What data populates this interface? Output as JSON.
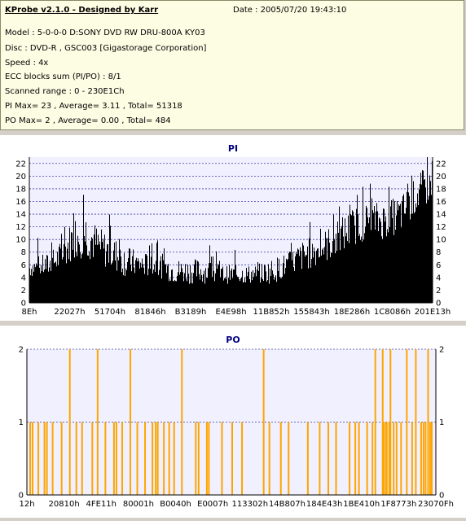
{
  "header": {
    "title": "KProbe v2.1.0 - Designed by Karr",
    "date": "Date : 2005/07/20 19:43:10",
    "lines": [
      "Model : 5-0-0-0 D:SONY    DVD RW DRU-800A  KY03",
      "Disc : DVD-R , GSC003 [Gigastorage Corporation]",
      "Speed : 4x",
      "ECC blocks sum (PI/PO) : 8/1",
      "Scanned range : 0 - 230E1Ch",
      "PI Max= 23 , Average= 3.11 , Total= 51318",
      "PO Max= 2 , Average= 0.00 , Total= 484"
    ]
  },
  "colors": {
    "pi_fill": "#000000",
    "po_fill": "#ffa500",
    "plot_bg": "#f0f0ff",
    "title": "#000080"
  },
  "chart_data": [
    {
      "type": "bar",
      "title": "PI",
      "ylim": [
        0,
        23
      ],
      "yticks": [
        0,
        2,
        4,
        6,
        8,
        10,
        12,
        14,
        16,
        18,
        20,
        22
      ],
      "xticks": [
        "8Eh",
        "22027h",
        "51704h",
        "81846h",
        "B3189h",
        "E4E98h",
        "11B852h",
        "155843h",
        "18E286h",
        "1C8086h",
        "201E13h"
      ],
      "grid": true,
      "profile": [
        [
          0,
          4,
          7
        ],
        [
          0.05,
          4,
          8
        ],
        [
          0.08,
          5,
          10
        ],
        [
          0.11,
          7,
          14
        ],
        [
          0.14,
          7,
          15
        ],
        [
          0.17,
          6,
          12
        ],
        [
          0.2,
          5,
          11
        ],
        [
          0.24,
          4,
          9
        ],
        [
          0.28,
          4,
          8
        ],
        [
          0.32,
          4,
          8
        ],
        [
          0.36,
          3,
          7
        ],
        [
          0.4,
          3,
          7
        ],
        [
          0.44,
          3,
          7
        ],
        [
          0.48,
          3,
          6
        ],
        [
          0.52,
          3,
          6
        ],
        [
          0.56,
          3,
          6
        ],
        [
          0.6,
          3,
          7
        ],
        [
          0.64,
          4,
          8
        ],
        [
          0.68,
          5,
          10
        ],
        [
          0.72,
          6,
          11
        ],
        [
          0.76,
          7,
          13
        ],
        [
          0.8,
          9,
          15
        ],
        [
          0.84,
          10,
          16
        ],
        [
          0.88,
          10,
          16
        ],
        [
          0.92,
          11,
          17
        ],
        [
          0.96,
          14,
          20
        ],
        [
          1.0,
          16,
          23
        ]
      ]
    },
    {
      "type": "bar",
      "title": "PO",
      "ylim": [
        0,
        2
      ],
      "yticks": [
        0,
        1,
        2
      ],
      "xticks": [
        "12h",
        "20810h",
        "4FE11h",
        "80001h",
        "B0040h",
        "E0007h",
        "113302h",
        "14B807h",
        "184E43h",
        "1BE410h",
        "1F8773h",
        "23070Fh"
      ],
      "grid": true,
      "spikes_full": [
        0.103,
        0.171,
        0.251,
        0.377,
        0.577,
        0.85,
        0.868,
        0.887,
        0.927,
        0.949,
        0.979
      ],
      "spikes_half": [
        0.006,
        0.012,
        0.026,
        0.041,
        0.047,
        0.061,
        0.083,
        0.119,
        0.133,
        0.158,
        0.19,
        0.211,
        0.217,
        0.231,
        0.268,
        0.287,
        0.305,
        0.313,
        0.318,
        0.333,
        0.346,
        0.358,
        0.411,
        0.418,
        0.438,
        0.443,
        0.475,
        0.5,
        0.524,
        0.591,
        0.619,
        0.638,
        0.685,
        0.714,
        0.735,
        0.754,
        0.787,
        0.801,
        0.81,
        0.83,
        0.843,
        0.871,
        0.876,
        0.878,
        0.884,
        0.895,
        0.902,
        0.913,
        0.94,
        0.962,
        0.968,
        0.973,
        0.984,
        0.988
      ]
    }
  ]
}
